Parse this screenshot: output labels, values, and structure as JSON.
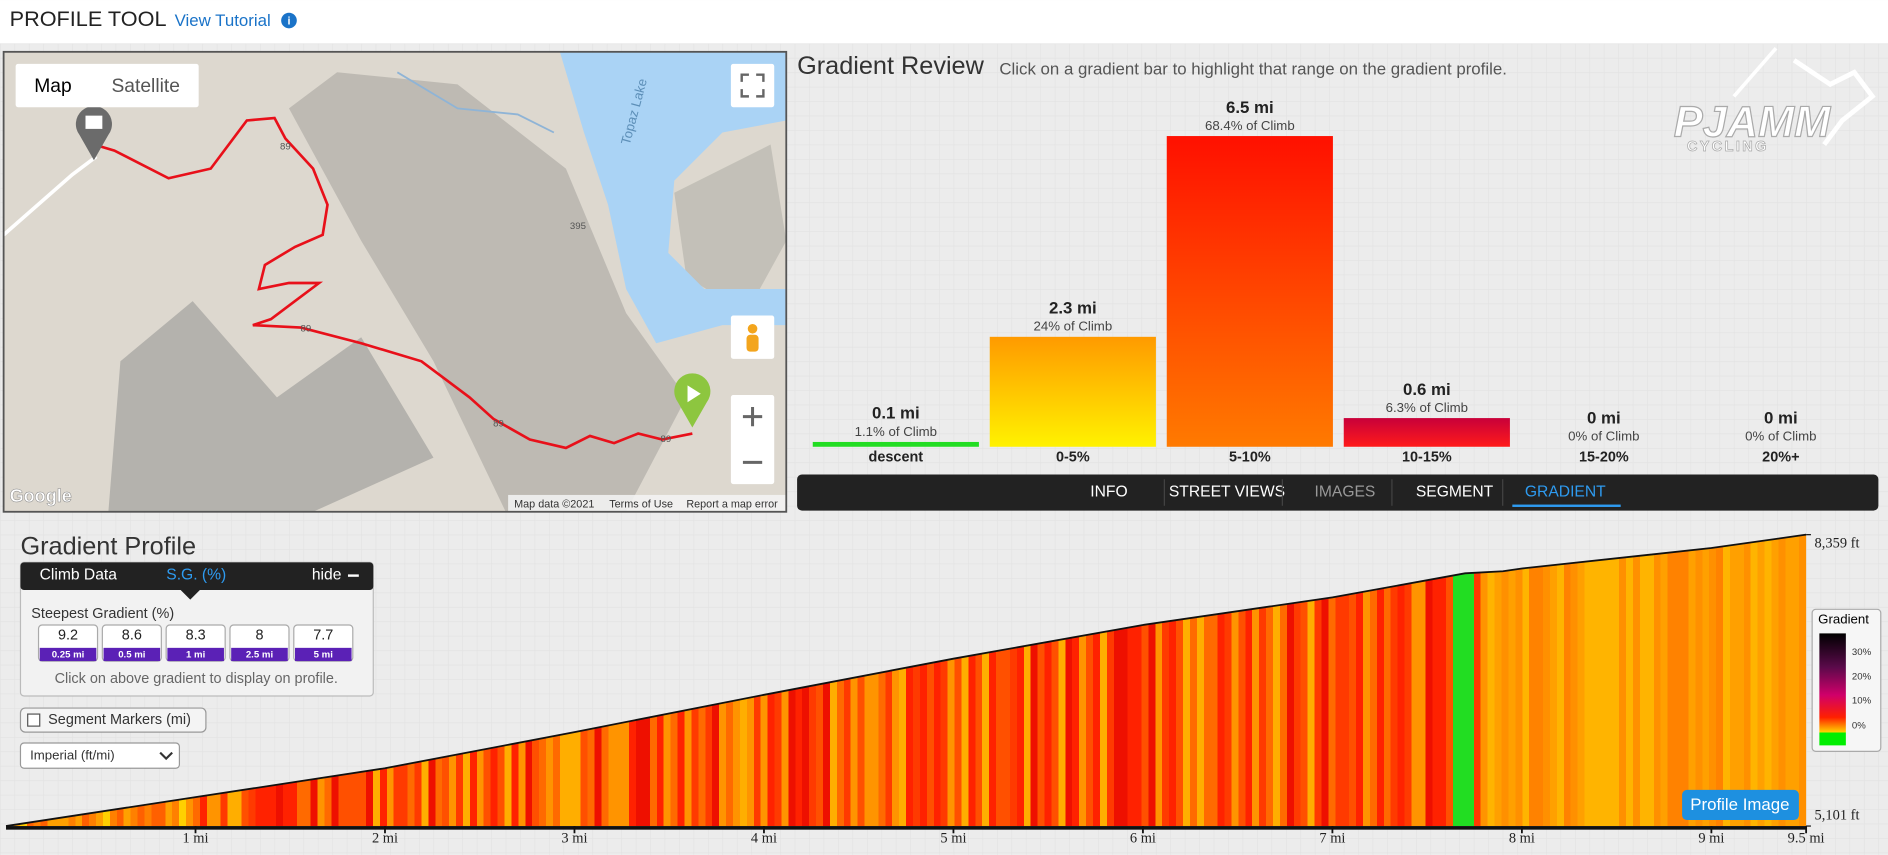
{
  "header": {
    "title": "PROFILE TOOL",
    "tutorial": "View Tutorial"
  },
  "map": {
    "buttons": [
      "Map",
      "Satellite"
    ],
    "lake": "Topaz Lake",
    "shields": [
      "89",
      "395",
      "89",
      "89",
      "89"
    ],
    "attribution": [
      "Map data ©2021",
      "Terms of Use",
      "Report a map error"
    ],
    "logo": "Google"
  },
  "gradient_review": {
    "title": "Gradient Review",
    "subtitle": "Click on a gradient bar to highlight that range on the gradient profile.",
    "bars": [
      {
        "range": "descent",
        "miles": 0.1,
        "label": "0.1 mi",
        "share": "1.1% of Climb"
      },
      {
        "range": "0-5%",
        "miles": 2.3,
        "label": "2.3 mi",
        "share": "24% of Climb"
      },
      {
        "range": "5-10%",
        "miles": 6.5,
        "label": "6.5 mi",
        "share": "68.4% of Climb"
      },
      {
        "range": "10-15%",
        "miles": 0.6,
        "label": "0.6 mi",
        "share": "6.3% of Climb"
      },
      {
        "range": "15-20%",
        "miles": 0,
        "label": "0 mi",
        "share": "0% of Climb"
      },
      {
        "range": "20%+",
        "miles": 0,
        "label": "0 mi",
        "share": "0% of Climb"
      }
    ]
  },
  "tabs": [
    "INFO",
    "STREET VIEWS",
    "IMAGES",
    "SEGMENT",
    "GRADIENT"
  ],
  "logo": {
    "name": "PJAMM",
    "tagline": "CYCLING"
  },
  "gradient_profile": {
    "title": "Gradient Profile",
    "panel": {
      "tabs": [
        "Climb Data",
        "S.G. (%)"
      ],
      "hide": "hide",
      "heading": "Steepest Gradient (%)",
      "steepest": [
        {
          "value": 9.2,
          "distance": "0.25 mi"
        },
        {
          "value": 8.6,
          "distance": "0.5 mi"
        },
        {
          "value": 8.3,
          "distance": "1 mi"
        },
        {
          "value": 8,
          "distance": "2.5 mi"
        },
        {
          "value": 7.7,
          "distance": "5 mi"
        }
      ],
      "note": "Click on above gradient to display on profile."
    },
    "segment_markers": "Segment Markers (mi)",
    "units": "Imperial (ft/mi)",
    "button": "Profile Image",
    "distance_mi": [
      0,
      1,
      2,
      3,
      4,
      5,
      6,
      7,
      7.7,
      7.9,
      8,
      9,
      9.5
    ],
    "elevation_ft": [
      5101,
      5424,
      5747,
      6151,
      6568,
      6972,
      7349,
      7658,
      7927,
      7950,
      7981,
      8210,
      8359
    ],
    "xticks": [
      {
        "value": 1,
        "label": "1 mi"
      },
      {
        "value": 2,
        "label": "2 mi"
      },
      {
        "value": 3,
        "label": "3 mi"
      },
      {
        "value": 4,
        "label": "4 mi"
      },
      {
        "value": 5,
        "label": "5 mi"
      },
      {
        "value": 6,
        "label": "6 mi"
      },
      {
        "value": 7,
        "label": "7 mi"
      },
      {
        "value": 8,
        "label": "8 mi"
      },
      {
        "value": 9,
        "label": "9 mi"
      },
      {
        "value": 9.5,
        "label": "9.5 mi"
      }
    ],
    "elevation_ticks": [
      {
        "value": 5101,
        "label": "5,101 ft"
      },
      {
        "value": 8359,
        "label": "8,359 ft"
      }
    ],
    "legend": {
      "title": "Gradient",
      "ticks": [
        "30%",
        "20%",
        "10%",
        "0%"
      ]
    }
  }
}
